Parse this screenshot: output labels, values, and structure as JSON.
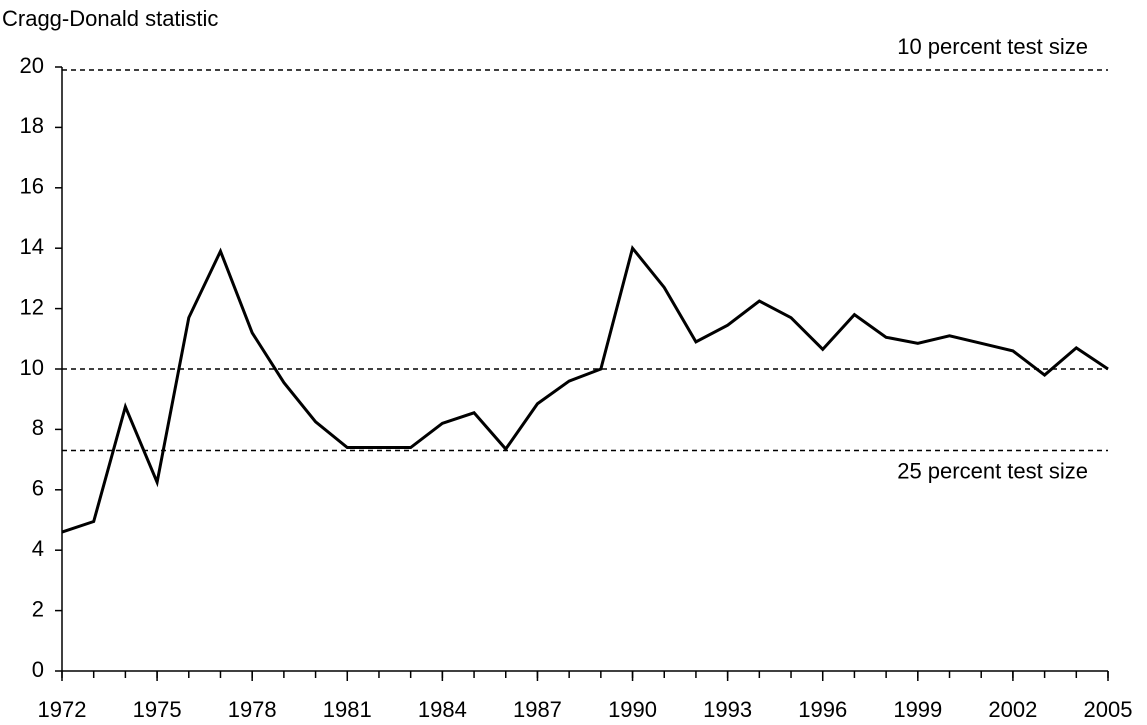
{
  "chart_data": {
    "type": "line",
    "y_label": "Cragg-Donald statistic",
    "x": [
      1972,
      1973,
      1974,
      1975,
      1976,
      1977,
      1978,
      1979,
      1980,
      1981,
      1982,
      1983,
      1984,
      1985,
      1986,
      1987,
      1988,
      1989,
      1990,
      1991,
      1992,
      1993,
      1994,
      1995,
      1996,
      1997,
      1998,
      1999,
      2000,
      2001,
      2002,
      2003,
      2004,
      2005
    ],
    "series": [
      {
        "name": "Cragg-Donald statistic",
        "color": "#000000",
        "values": [
          4.6,
          4.95,
          8.75,
          6.25,
          11.7,
          13.9,
          11.2,
          9.55,
          8.25,
          7.4,
          7.4,
          7.4,
          8.2,
          8.55,
          7.35,
          8.85,
          9.6,
          10,
          14,
          12.7,
          10.9,
          11.45,
          12.25,
          11.7,
          10.65,
          11.8,
          11.05,
          10.85,
          11.1,
          10.85,
          10.6,
          9.8,
          10.7,
          10
        ]
      }
    ],
    "reference_lines": [
      {
        "value": 19.9,
        "label": "10 percent test size"
      },
      {
        "value": 10
      },
      {
        "value": 7.3,
        "label": "25 percent test size"
      }
    ],
    "xlim": [
      1972,
      2005
    ],
    "xticks": [
      1972,
      1975,
      1978,
      1981,
      1984,
      1987,
      1990,
      1993,
      1996,
      1999,
      2002,
      2005
    ],
    "ylim": [
      0,
      20
    ],
    "yticks": [
      0,
      2,
      4,
      6,
      8,
      10,
      12,
      14,
      16,
      18,
      20
    ]
  }
}
